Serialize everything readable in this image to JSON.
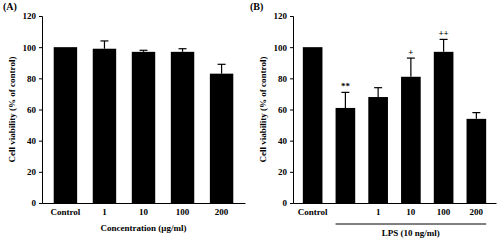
{
  "chart_data": [
    {
      "type": "bar",
      "title": "(A)",
      "categories": [
        "Control",
        "1",
        "10",
        "100",
        "200"
      ],
      "values": [
        100,
        99,
        97,
        97,
        83
      ],
      "errors": [
        0,
        5,
        1,
        2,
        6
      ],
      "color": "#000000",
      "xlabel": "Concentration (μg/ml)",
      "ylabel": "Cell viability (% of control)",
      "ylim": [
        0,
        120
      ],
      "yticks": [
        0,
        20,
        40,
        60,
        80,
        100,
        120
      ],
      "grid": false
    },
    {
      "type": "bar",
      "title": "(B)",
      "categories": [
        "Control",
        null,
        "1",
        "10",
        "100",
        "200"
      ],
      "values": [
        100,
        61,
        68,
        81,
        97,
        54
      ],
      "errors": [
        0,
        10,
        6,
        12,
        8,
        4
      ],
      "annotations": [
        null,
        "**",
        null,
        "+",
        "++",
        null
      ],
      "color": "#000000",
      "xlabel": "LPS (10 ng/ml)",
      "ylabel": "Cell viability (% of control)",
      "ylim": [
        0,
        120
      ],
      "yticks": [
        0,
        20,
        40,
        60,
        80,
        100,
        120
      ],
      "grid": false
    }
  ]
}
